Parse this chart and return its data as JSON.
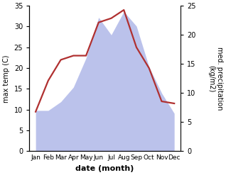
{
  "months": [
    "Jan",
    "Feb",
    "Mar",
    "Apr",
    "May",
    "Jun",
    "Jul",
    "Aug",
    "Sep",
    "Oct",
    "Nov",
    "Dec"
  ],
  "temperature": [
    9.5,
    17.0,
    22.0,
    23.0,
    23.0,
    31.0,
    32.0,
    34.0,
    25.0,
    20.0,
    12.0,
    11.5
  ],
  "precipitation_right": [
    7,
    7,
    8.5,
    11,
    16,
    23,
    20,
    24,
    21.5,
    14.5,
    10,
    6.5
  ],
  "temp_color": "#b03030",
  "precip_color": "#b0b8e8",
  "left_ylim": [
    0,
    35
  ],
  "right_ylim": [
    0,
    25
  ],
  "left_yticks": [
    0,
    5,
    10,
    15,
    20,
    25,
    30,
    35
  ],
  "right_yticks": [
    0,
    5,
    10,
    15,
    20,
    25
  ],
  "left_ylabel": "max temp (C)",
  "right_ylabel": "med. precipitation\n(kg/m2)",
  "xlabel": "date (month)",
  "line_width": 1.6,
  "figsize": [
    3.18,
    2.47
  ],
  "dpi": 100
}
